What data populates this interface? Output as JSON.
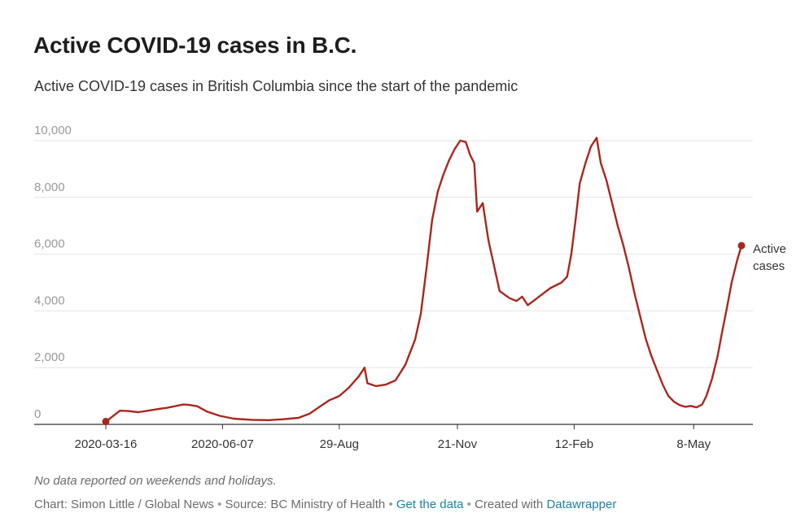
{
  "header": {
    "title": "Active COVID-19 cases in B.C.",
    "subtitle": "Active COVID-19 cases in British Columbia since the start of the pandemic"
  },
  "footer": {
    "note": "No data reported on weekends and holidays.",
    "credit": "Chart: Simon Little / Global News",
    "source": "Source: BC Ministry of Health",
    "get_data": "Get the data",
    "created_with": "Created with",
    "tool": "Datawrapper",
    "separator": "•"
  },
  "colors": {
    "line": "#a8271e",
    "grid": "#e6e6e6",
    "axis": "#333333",
    "tick_text": "#999999",
    "link": "#1d81a2"
  },
  "chart_data": {
    "type": "line",
    "title": "Active COVID-19 cases in B.C.",
    "subtitle": "Active COVID-19 cases in British Columbia since the start of the pandemic",
    "xlabel": "",
    "ylabel": "",
    "ylim": [
      0,
      10000
    ],
    "yticks": [
      0,
      2000,
      4000,
      6000,
      8000,
      10000
    ],
    "ytick_labels": [
      "0",
      "2,000",
      "4,000",
      "6,000",
      "8,000",
      "10,000"
    ],
    "xlim": [
      "2020-03-16",
      "2021-06-29"
    ],
    "xticks": [
      "2020-03-16",
      "2020-06-07",
      "2020-08-29",
      "2020-11-21",
      "2021-02-12",
      "2021-05-08"
    ],
    "xtick_labels": [
      "2020-03-16",
      "2020-06-07",
      "29-Aug",
      "21-Nov",
      "12-Feb",
      "8-May"
    ],
    "grid": "horizontal",
    "end_label": "Active cases",
    "series": [
      {
        "name": "Active cases",
        "points": [
          [
            "2020-03-16",
            100
          ],
          [
            "2020-03-20",
            250
          ],
          [
            "2020-03-26",
            480
          ],
          [
            "2020-04-01",
            470
          ],
          [
            "2020-04-08",
            430
          ],
          [
            "2020-04-15",
            480
          ],
          [
            "2020-04-22",
            540
          ],
          [
            "2020-04-29",
            590
          ],
          [
            "2020-05-06",
            660
          ],
          [
            "2020-05-10",
            700
          ],
          [
            "2020-05-14",
            690
          ],
          [
            "2020-05-20",
            640
          ],
          [
            "2020-05-27",
            450
          ],
          [
            "2020-06-05",
            300
          ],
          [
            "2020-06-15",
            200
          ],
          [
            "2020-06-28",
            160
          ],
          [
            "2020-07-10",
            150
          ],
          [
            "2020-07-20",
            180
          ],
          [
            "2020-07-31",
            230
          ],
          [
            "2020-08-08",
            380
          ],
          [
            "2020-08-15",
            620
          ],
          [
            "2020-08-22",
            850
          ],
          [
            "2020-08-29",
            1000
          ],
          [
            "2020-09-05",
            1300
          ],
          [
            "2020-09-12",
            1700
          ],
          [
            "2020-09-16",
            2000
          ],
          [
            "2020-09-18",
            1450
          ],
          [
            "2020-09-24",
            1350
          ],
          [
            "2020-10-01",
            1400
          ],
          [
            "2020-10-08",
            1550
          ],
          [
            "2020-10-15",
            2100
          ],
          [
            "2020-10-22",
            3000
          ],
          [
            "2020-10-26",
            3900
          ],
          [
            "2020-10-30",
            5500
          ],
          [
            "2020-11-03",
            7200
          ],
          [
            "2020-11-07",
            8200
          ],
          [
            "2020-11-11",
            8800
          ],
          [
            "2020-11-15",
            9300
          ],
          [
            "2020-11-19",
            9700
          ],
          [
            "2020-11-23",
            10000
          ],
          [
            "2020-11-27",
            9950
          ],
          [
            "2020-11-30",
            9500
          ],
          [
            "2020-12-03",
            9200
          ],
          [
            "2020-12-05",
            7500
          ],
          [
            "2020-12-09",
            7800
          ],
          [
            "2020-12-13",
            6500
          ],
          [
            "2020-12-17",
            5600
          ],
          [
            "2020-12-21",
            4700
          ],
          [
            "2020-12-28",
            4450
          ],
          [
            "2021-01-02",
            4350
          ],
          [
            "2021-01-06",
            4500
          ],
          [
            "2021-01-10",
            4200
          ],
          [
            "2021-01-14",
            4350
          ],
          [
            "2021-01-18",
            4500
          ],
          [
            "2021-01-22",
            4650
          ],
          [
            "2021-01-26",
            4800
          ],
          [
            "2021-01-30",
            4900
          ],
          [
            "2021-02-03",
            5000
          ],
          [
            "2021-02-07",
            5200
          ],
          [
            "2021-02-10",
            6000
          ],
          [
            "2021-02-13",
            7200
          ],
          [
            "2021-02-16",
            8500
          ],
          [
            "2021-02-20",
            9200
          ],
          [
            "2021-02-24",
            9800
          ],
          [
            "2021-02-28",
            10100
          ],
          [
            "2021-03-03",
            9200
          ],
          [
            "2021-03-07",
            8600
          ],
          [
            "2021-03-11",
            7800
          ],
          [
            "2021-03-15",
            7000
          ],
          [
            "2021-03-19",
            6300
          ],
          [
            "2021-03-23",
            5500
          ],
          [
            "2021-03-27",
            4600
          ],
          [
            "2021-03-31",
            3800
          ],
          [
            "2021-04-04",
            3000
          ],
          [
            "2021-04-08",
            2400
          ],
          [
            "2021-04-12",
            1900
          ],
          [
            "2021-04-16",
            1400
          ],
          [
            "2021-04-20",
            1000
          ],
          [
            "2021-04-24",
            800
          ],
          [
            "2021-04-28",
            680
          ],
          [
            "2021-05-02",
            620
          ],
          [
            "2021-05-06",
            650
          ],
          [
            "2021-05-10",
            600
          ],
          [
            "2021-05-14",
            700
          ],
          [
            "2021-05-17",
            1000
          ],
          [
            "2021-05-21",
            1600
          ],
          [
            "2021-05-25",
            2400
          ],
          [
            "2021-05-28",
            3200
          ],
          [
            "2021-06-01",
            4200
          ],
          [
            "2021-06-04",
            5000
          ],
          [
            "2021-06-08",
            5800
          ],
          [
            "2021-06-11",
            6300
          ]
        ]
      }
    ]
  }
}
